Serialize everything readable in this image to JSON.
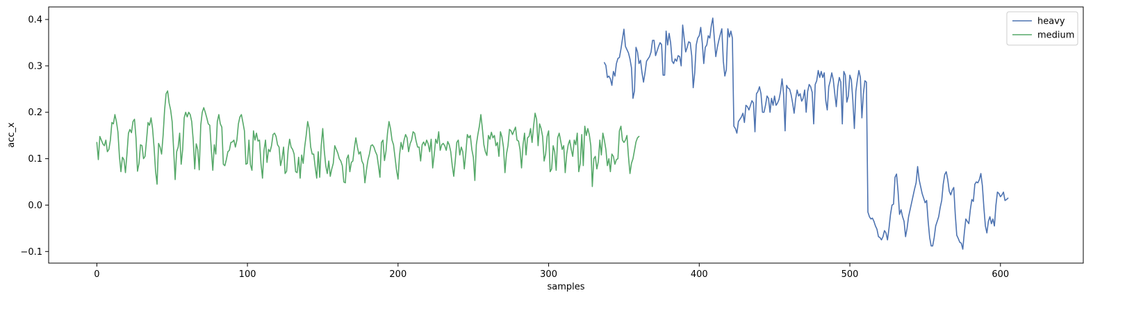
{
  "chart_data": {
    "type": "line",
    "xlabel": "samples",
    "ylabel": "acc_x",
    "xlim": [
      -32,
      655
    ],
    "ylim": [
      -0.125,
      0.427
    ],
    "x_ticks": [
      0,
      100,
      200,
      300,
      400,
      500,
      600
    ],
    "y_ticks": [
      -0.1,
      0.0,
      0.1,
      0.2,
      0.3,
      0.4
    ],
    "y_tick_labels": [
      "−0.1",
      "0.0",
      "0.1",
      "0.2",
      "0.3",
      "0.4"
    ],
    "legend_position": "top-right",
    "grid": false,
    "series": [
      {
        "name": "heavy",
        "color": "#4c72b0",
        "x_start": 337,
        "values": [
          0.307,
          0.301,
          0.275,
          0.278,
          0.272,
          0.258,
          0.288,
          0.278,
          0.305,
          0.316,
          0.318,
          0.336,
          0.358,
          0.379,
          0.342,
          0.335,
          0.328,
          0.315,
          0.296,
          0.23,
          0.246,
          0.34,
          0.33,
          0.305,
          0.312,
          0.285,
          0.265,
          0.285,
          0.31,
          0.315,
          0.32,
          0.33,
          0.355,
          0.355,
          0.322,
          0.332,
          0.342,
          0.35,
          0.346,
          0.28,
          0.28,
          0.375,
          0.345,
          0.37,
          0.35,
          0.31,
          0.305,
          0.315,
          0.31,
          0.322,
          0.32,
          0.3,
          0.388,
          0.36,
          0.33,
          0.34,
          0.352,
          0.35,
          0.322,
          0.253,
          0.285,
          0.345,
          0.36,
          0.365,
          0.383,
          0.35,
          0.305,
          0.34,
          0.345,
          0.365,
          0.36,
          0.386,
          0.403,
          0.36,
          0.32,
          0.34,
          0.355,
          0.368,
          0.38,
          0.31,
          0.278,
          0.292,
          0.38,
          0.362,
          0.375,
          0.36,
          0.17,
          0.165,
          0.155,
          0.18,
          0.185,
          0.19,
          0.198,
          0.178,
          0.215,
          0.212,
          0.205,
          0.215,
          0.225,
          0.22,
          0.158,
          0.24,
          0.245,
          0.255,
          0.24,
          0.2,
          0.2,
          0.215,
          0.235,
          0.23,
          0.2,
          0.23,
          0.215,
          0.235,
          0.215,
          0.22,
          0.228,
          0.245,
          0.272,
          0.24,
          0.16,
          0.258,
          0.252,
          0.25,
          0.238,
          0.22,
          0.198,
          0.228,
          0.248,
          0.235,
          0.24,
          0.224,
          0.23,
          0.248,
          0.2,
          0.245,
          0.26,
          0.255,
          0.243,
          0.175,
          0.26,
          0.268,
          0.29,
          0.275,
          0.288,
          0.275,
          0.285,
          0.225,
          0.205,
          0.255,
          0.268,
          0.285,
          0.27,
          0.24,
          0.212,
          0.255,
          0.275,
          0.265,
          0.175,
          0.288,
          0.28,
          0.222,
          0.235,
          0.28,
          0.27,
          0.225,
          0.165,
          0.245,
          0.27,
          0.29,
          0.275,
          0.188,
          0.24,
          0.268,
          0.265,
          -0.015,
          -0.025,
          -0.03,
          -0.028,
          -0.035,
          -0.045,
          -0.052,
          -0.068,
          -0.07,
          -0.075,
          -0.068,
          -0.055,
          -0.06,
          -0.075,
          -0.05,
          -0.02,
          0.0,
          0.002,
          0.06,
          0.067,
          0.03,
          -0.02,
          -0.01,
          -0.025,
          -0.035,
          -0.068,
          -0.05,
          -0.025,
          -0.01,
          0.005,
          0.02,
          0.035,
          0.048,
          0.083,
          0.055,
          0.04,
          0.025,
          0.015,
          0.005,
          0.01,
          -0.035,
          -0.07,
          -0.088,
          -0.088,
          -0.07,
          -0.045,
          -0.035,
          -0.025,
          -0.005,
          0.01,
          0.045,
          0.066,
          0.072,
          0.055,
          0.03,
          0.022,
          0.032,
          0.038,
          -0.02,
          -0.065,
          -0.072,
          -0.08,
          -0.082,
          -0.095,
          -0.06,
          -0.03,
          -0.035,
          -0.04,
          -0.01,
          0.012,
          0.008,
          0.045,
          0.05,
          0.048,
          0.055,
          0.068,
          0.042,
          -0.005,
          -0.045,
          -0.06,
          -0.035,
          -0.025,
          -0.04,
          -0.03,
          -0.045,
          0.0,
          0.028,
          0.025,
          0.018,
          0.022,
          0.028,
          0.01,
          0.012,
          0.015
        ]
      },
      {
        "name": "medium",
        "color": "#55a868",
        "x_start": 0,
        "values": [
          0.135,
          0.098,
          0.148,
          0.14,
          0.132,
          0.128,
          0.14,
          0.115,
          0.12,
          0.14,
          0.178,
          0.175,
          0.195,
          0.18,
          0.158,
          0.105,
          0.072,
          0.103,
          0.098,
          0.07,
          0.11,
          0.155,
          0.163,
          0.156,
          0.18,
          0.185,
          0.145,
          0.073,
          0.09,
          0.13,
          0.128,
          0.1,
          0.105,
          0.14,
          0.178,
          0.172,
          0.188,
          0.165,
          0.125,
          0.073,
          0.045,
          0.133,
          0.125,
          0.11,
          0.15,
          0.205,
          0.24,
          0.246,
          0.22,
          0.205,
          0.18,
          0.12,
          0.055,
          0.115,
          0.125,
          0.155,
          0.088,
          0.12,
          0.188,
          0.2,
          0.19,
          0.2,
          0.195,
          0.18,
          0.14,
          0.078,
          0.132,
          0.12,
          0.076,
          0.172,
          0.2,
          0.21,
          0.2,
          0.188,
          0.175,
          0.172,
          0.12,
          0.075,
          0.13,
          0.11,
          0.18,
          0.195,
          0.175,
          0.168,
          0.088,
          0.085,
          0.098,
          0.115,
          0.118,
          0.135,
          0.136,
          0.14,
          0.125,
          0.14,
          0.175,
          0.19,
          0.195,
          0.178,
          0.16,
          0.088,
          0.09,
          0.14,
          0.087,
          0.075,
          0.16,
          0.14,
          0.155,
          0.138,
          0.14,
          0.09,
          0.058,
          0.118,
          0.14,
          0.092,
          0.12,
          0.115,
          0.128,
          0.152,
          0.155,
          0.148,
          0.13,
          0.125,
          0.085,
          0.1,
          0.125,
          0.068,
          0.073,
          0.118,
          0.142,
          0.125,
          0.12,
          0.11,
          0.072,
          0.07,
          0.103,
          0.058,
          0.108,
          0.09,
          0.125,
          0.15,
          0.18,
          0.165,
          0.125,
          0.11,
          0.11,
          0.082,
          0.058,
          0.115,
          0.06,
          0.128,
          0.165,
          0.118,
          0.085,
          0.068,
          0.095,
          0.062,
          0.078,
          0.09,
          0.128,
          0.12,
          0.112,
          0.1,
          0.095,
          0.085,
          0.05,
          0.048,
          0.1,
          0.108,
          0.072,
          0.092,
          0.095,
          0.123,
          0.145,
          0.125,
          0.11,
          0.115,
          0.095,
          0.088,
          0.048,
          0.075,
          0.097,
          0.11,
          0.128,
          0.13,
          0.125,
          0.115,
          0.108,
          0.085,
          0.06,
          0.135,
          0.14,
          0.096,
          0.116,
          0.155,
          0.18,
          0.165,
          0.14,
          0.13,
          0.103,
          0.075,
          0.056,
          0.108,
          0.135,
          0.12,
          0.14,
          0.152,
          0.145,
          0.115,
          0.132,
          0.14,
          0.158,
          0.155,
          0.138,
          0.125,
          0.125,
          0.095,
          0.13,
          0.136,
          0.128,
          0.14,
          0.132,
          0.115,
          0.142,
          0.08,
          0.108,
          0.142,
          0.133,
          0.158,
          0.118,
          0.13,
          0.133,
          0.128,
          0.118,
          0.137,
          0.13,
          0.115,
          0.085,
          0.062,
          0.096,
          0.135,
          0.14,
          0.108,
          0.125,
          0.115,
          0.078,
          0.112,
          0.152,
          0.145,
          0.15,
          0.12,
          0.103,
          0.053,
          0.13,
          0.152,
          0.17,
          0.195,
          0.165,
          0.13,
          0.115,
          0.107,
          0.15,
          0.142,
          0.157,
          0.145,
          0.15,
          0.128,
          0.135,
          0.105,
          0.158,
          0.147,
          0.125,
          0.07,
          0.11,
          0.128,
          0.163,
          0.16,
          0.152,
          0.16,
          0.168,
          0.14,
          0.138,
          0.12,
          0.08,
          0.13,
          0.155,
          0.108,
          0.145,
          0.148,
          0.165,
          0.135,
          0.17,
          0.198,
          0.185,
          0.128,
          0.175,
          0.165,
          0.148,
          0.095,
          0.11,
          0.148,
          0.16,
          0.072,
          0.078,
          0.128,
          0.115,
          0.075,
          0.145,
          0.155,
          0.138,
          0.12,
          0.128,
          0.07,
          0.11,
          0.13,
          0.14,
          0.12,
          0.105,
          0.14,
          0.13,
          0.155,
          0.072,
          0.09,
          0.152,
          0.085,
          0.17,
          0.15,
          0.165,
          0.152,
          0.128,
          0.04,
          0.1,
          0.105,
          0.078,
          0.094,
          0.14,
          0.108,
          0.155,
          0.14,
          0.12,
          0.085,
          0.1,
          0.072,
          0.11,
          0.105,
          0.088,
          0.098,
          0.1,
          0.16,
          0.17,
          0.14,
          0.135,
          0.14,
          0.15,
          0.105,
          0.068,
          0.09,
          0.1,
          0.118,
          0.136,
          0.145,
          0.148
        ]
      }
    ]
  }
}
